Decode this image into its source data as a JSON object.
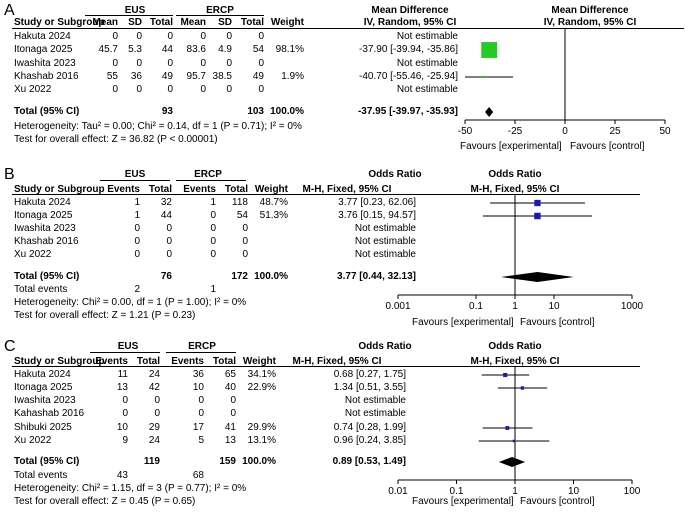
{
  "chart_data": [
    {
      "type": "forest",
      "panel": "A",
      "group1": "EUS",
      "group2": "ERCP",
      "effect_header": "Mean Difference",
      "method": "IV, Random, 95% CI",
      "columns": [
        "Study or Subgroup",
        "Mean",
        "SD",
        "Total",
        "Mean",
        "SD",
        "Total",
        "Weight",
        "IV, Random, 95% CI",
        "IV, Random, 95% CI"
      ],
      "studies": [
        {
          "name": "Hakuta 2024",
          "c1": "0",
          "c2": "0",
          "c3": "0",
          "c4": "0",
          "c5": "0",
          "c6": "0",
          "weight": "",
          "ci_text": "Not estimable",
          "est": null,
          "lo": null,
          "hi": null,
          "w": 0
        },
        {
          "name": "Itonaga 2025",
          "c1": "45.7",
          "c2": "5.3",
          "c3": "44",
          "c4": "83.6",
          "c5": "4.9",
          "c6": "54",
          "weight": "98.1%",
          "ci_text": "-37.90 [-39.94, -35.86]",
          "est": -37.9,
          "lo": -39.94,
          "hi": -35.86,
          "w": 98.1
        },
        {
          "name": "Iwashita 2023",
          "c1": "0",
          "c2": "0",
          "c3": "0",
          "c4": "0",
          "c5": "0",
          "c6": "0",
          "weight": "",
          "ci_text": "Not estimable",
          "est": null,
          "lo": null,
          "hi": null,
          "w": 0
        },
        {
          "name": "Khashab  2016",
          "c1": "55",
          "c2": "36",
          "c3": "49",
          "c4": "95.7",
          "c5": "38.5",
          "c6": "49",
          "weight": "1.9%",
          "ci_text": "-40.70 [-55.46, -25.94]",
          "est": -40.7,
          "lo": -55.46,
          "hi": -25.94,
          "w": 1.9
        },
        {
          "name": "Xu 2022",
          "c1": "0",
          "c2": "0",
          "c3": "0",
          "c4": "0",
          "c5": "0",
          "c6": "0",
          "weight": "",
          "ci_text": "Not estimable",
          "est": null,
          "lo": null,
          "hi": null,
          "w": 0
        }
      ],
      "total": {
        "label": "Total (95% CI)",
        "g1": "93",
        "g2": "103",
        "weight": "100.0%",
        "ci_text": "-37.95 [-39.97, -35.93]",
        "est": -37.95,
        "lo": -39.97,
        "hi": -35.93
      },
      "total_events": null,
      "heterogeneity": "Heterogeneity: Tau² = 0.00; Chi² = 0.14, df = 1 (P = 0.71); I² = 0%",
      "overall": "Test for overall effect: Z = 36.82 (P < 0.00001)",
      "axis": {
        "scale": "linear",
        "min": -50,
        "max": 50,
        "ticks": [
          -50,
          -25,
          0,
          25,
          50
        ],
        "tick_labels": [
          "-50",
          "-25",
          "0",
          "25",
          "50"
        ]
      },
      "favours_left": "Favours [experimental]",
      "favours_right": "Favours [control]"
    },
    {
      "type": "forest",
      "panel": "B",
      "group1": "EUS",
      "group2": "ERCP",
      "effect_header": "Odds Ratio",
      "method": "M-H, Fixed, 95% CI",
      "columns": [
        "Study or Subgroup",
        "Events",
        "Total",
        "Events",
        "Total",
        "Weight",
        "M-H, Fixed, 95% CI",
        "M-H, Fixed, 95% CI"
      ],
      "studies": [
        {
          "name": "Hakuta 2024",
          "c1": "1",
          "c2": "32",
          "c3": "1",
          "c4": "118",
          "weight": "48.7%",
          "ci_text": "3.77 [0.23, 62.06]",
          "est": 3.77,
          "lo": 0.23,
          "hi": 62.06,
          "w": 48.7
        },
        {
          "name": "Itonaga 2025",
          "c1": "1",
          "c2": "44",
          "c3": "0",
          "c4": "54",
          "weight": "51.3%",
          "ci_text": "3.76 [0.15, 94.57]",
          "est": 3.76,
          "lo": 0.15,
          "hi": 94.57,
          "w": 51.3
        },
        {
          "name": "Iwashita 2023",
          "c1": "0",
          "c2": "0",
          "c3": "0",
          "c4": "0",
          "weight": "",
          "ci_text": "Not estimable",
          "est": null,
          "lo": null,
          "hi": null,
          "w": 0
        },
        {
          "name": "Khashab  2016",
          "c1": "0",
          "c2": "0",
          "c3": "0",
          "c4": "0",
          "weight": "",
          "ci_text": "Not estimable",
          "est": null,
          "lo": null,
          "hi": null,
          "w": 0
        },
        {
          "name": "Xu 2022",
          "c1": "0",
          "c2": "0",
          "c3": "0",
          "c4": "0",
          "weight": "",
          "ci_text": "Not estimable",
          "est": null,
          "lo": null,
          "hi": null,
          "w": 0
        }
      ],
      "total": {
        "label": "Total (95% CI)",
        "g1": "76",
        "g2": "172",
        "weight": "100.0%",
        "ci_text": "3.77 [0.44, 32.13]",
        "est": 3.77,
        "lo": 0.44,
        "hi": 32.13
      },
      "total_events": {
        "label": "Total events",
        "g1": "2",
        "g2": "1"
      },
      "heterogeneity": "Heterogeneity: Chi² = 0.00, df = 1 (P = 1.00); I² = 0%",
      "overall": "Test for overall effect: Z = 1.21 (P = 0.23)",
      "axis": {
        "scale": "log",
        "min": 0.001,
        "max": 1000,
        "ticks": [
          0.001,
          0.1,
          1,
          10,
          1000
        ],
        "tick_labels": [
          "0.001",
          "0.1",
          "1",
          "10",
          "1000"
        ]
      },
      "favours_left": "Favours [experimental]",
      "favours_right": "Favours [control]"
    },
    {
      "type": "forest",
      "panel": "C",
      "group1": "EUS",
      "group2": "ERCP",
      "effect_header": "Odds Ratio",
      "method": "M-H, Fixed, 95% CI",
      "columns": [
        "Study or Subgroup",
        "Events",
        "Total",
        "Events",
        "Total",
        "Weight",
        "M-H, Fixed, 95% CI",
        "M-H, Fixed, 95% CI"
      ],
      "studies": [
        {
          "name": "Hakuta  2024",
          "c1": "11",
          "c2": "24",
          "c3": "36",
          "c4": "65",
          "weight": "34.1%",
          "ci_text": "0.68 [0.27, 1.75]",
          "est": 0.68,
          "lo": 0.27,
          "hi": 1.75,
          "w": 34.1
        },
        {
          "name": "Itonaga 2025",
          "c1": "13",
          "c2": "42",
          "c3": "10",
          "c4": "40",
          "weight": "22.9%",
          "ci_text": "1.34 [0.51, 3.55]",
          "est": 1.34,
          "lo": 0.51,
          "hi": 3.55,
          "w": 22.9
        },
        {
          "name": "Iwashita 2023",
          "c1": "0",
          "c2": "0",
          "c3": "0",
          "c4": "0",
          "weight": "",
          "ci_text": "Not estimable",
          "est": null,
          "lo": null,
          "hi": null,
          "w": 0
        },
        {
          "name": "Kahashab 2016",
          "c1": "0",
          "c2": "0",
          "c3": "0",
          "c4": "0",
          "weight": "",
          "ci_text": "Not estimable",
          "est": null,
          "lo": null,
          "hi": null,
          "w": 0
        },
        {
          "name": "Shibuki 2025",
          "c1": "10",
          "c2": "29",
          "c3": "17",
          "c4": "41",
          "weight": "29.9%",
          "ci_text": "0.74 [0.28, 1.99]",
          "est": 0.74,
          "lo": 0.28,
          "hi": 1.99,
          "w": 29.9
        },
        {
          "name": "Xu  2022",
          "c1": "9",
          "c2": "24",
          "c3": "5",
          "c4": "13",
          "weight": "13.1%",
          "ci_text": "0.96 [0.24, 3.85]",
          "est": 0.96,
          "lo": 0.24,
          "hi": 3.85,
          "w": 13.1
        }
      ],
      "total": {
        "label": "Total (95% CI)",
        "g1": "119",
        "g2": "159",
        "weight": "100.0%",
        "ci_text": "0.89 [0.53, 1.49]",
        "est": 0.89,
        "lo": 0.53,
        "hi": 1.49
      },
      "total_events": {
        "label": "Total events",
        "g1": "43",
        "g2": "68"
      },
      "heterogeneity": "Heterogeneity: Chi² = 1.15, df = 3 (P = 0.77); I² = 0%",
      "overall": "Test for overall effect: Z = 0.45 (P = 0.65)",
      "axis": {
        "scale": "log",
        "min": 0.01,
        "max": 100,
        "ticks": [
          0.01,
          0.1,
          1,
          10,
          100
        ],
        "tick_labels": [
          "0.01",
          "0.1",
          "1",
          "10",
          "100"
        ]
      },
      "favours_left": "Favours [experimental]",
      "favours_right": "Favours [control]"
    }
  ],
  "colors": {
    "panel_a_marker": "#22cc22",
    "panel_bc_marker": "#1a1ab8",
    "line": "#000000"
  }
}
